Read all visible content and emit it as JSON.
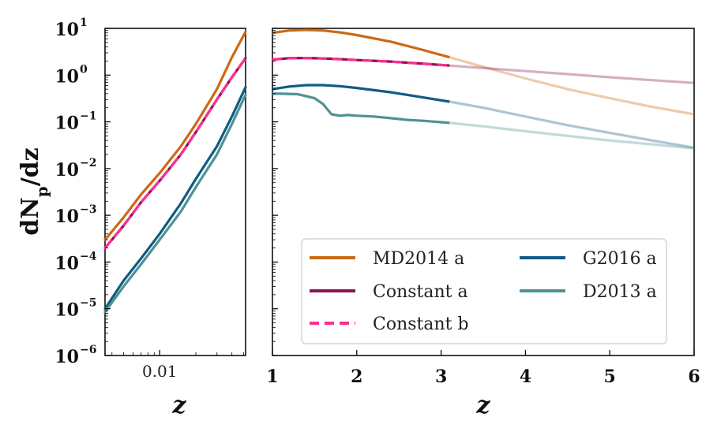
{
  "chart_data": [
    {
      "type": "line",
      "panel": "left",
      "xscale": "log",
      "yscale": "log",
      "xlim": [
        0.0035,
        0.052
      ],
      "ylim": [
        1e-06,
        10
      ],
      "xlabel": "z",
      "ylabel": "dN_p/dz",
      "ylabel_parts": {
        "main": "dN",
        "sub": "p",
        "rest": "/dz"
      },
      "x_tick_labels": [
        "0.01"
      ],
      "y_tick_labels": [
        {
          "base": "10",
          "exp": "1"
        },
        {
          "base": "10",
          "exp": "0"
        },
        {
          "base": "10",
          "exp": "−1"
        },
        {
          "base": "10",
          "exp": "−2"
        },
        {
          "base": "10",
          "exp": "−3"
        },
        {
          "base": "10",
          "exp": "−4"
        },
        {
          "base": "10",
          "exp": "−5"
        },
        {
          "base": "10",
          "exp": "−6"
        }
      ],
      "series": [
        {
          "name": "MD2014 a",
          "color": "#cc6a14",
          "style": "solid",
          "x": [
            0.0035,
            0.005,
            0.007,
            0.01,
            0.015,
            0.02,
            0.03,
            0.04,
            0.052
          ],
          "y": [
            0.0003,
            0.0009,
            0.0028,
            0.008,
            0.03,
            0.09,
            0.5,
            2.4,
            8.5
          ]
        },
        {
          "name": "Constant a",
          "color": "#8a1650",
          "style": "solid",
          "x": [
            0.0035,
            0.005,
            0.007,
            0.01,
            0.015,
            0.02,
            0.03,
            0.04,
            0.052
          ],
          "y": [
            0.0002,
            0.0006,
            0.0019,
            0.0055,
            0.02,
            0.06,
            0.3,
            0.9,
            2.3
          ]
        },
        {
          "name": "Constant b",
          "color": "#ff2d95",
          "style": "dashed",
          "x": [
            0.0035,
            0.005,
            0.007,
            0.01,
            0.015,
            0.02,
            0.03,
            0.04,
            0.052
          ],
          "y": [
            0.0002,
            0.0006,
            0.0019,
            0.0055,
            0.02,
            0.06,
            0.3,
            0.9,
            2.3
          ]
        },
        {
          "name": "G2016 a",
          "color": "#0f5c85",
          "style": "solid",
          "x": [
            0.0035,
            0.005,
            0.007,
            0.01,
            0.015,
            0.02,
            0.03,
            0.04,
            0.052
          ],
          "y": [
            1e-05,
            4e-05,
            0.00012,
            0.0004,
            0.0018,
            0.006,
            0.03,
            0.13,
            0.55
          ]
        },
        {
          "name": "D2013 a",
          "color": "#4f9294",
          "style": "solid",
          "x": [
            0.0035,
            0.005,
            0.007,
            0.01,
            0.015,
            0.02,
            0.03,
            0.04,
            0.052
          ],
          "y": [
            8.5e-06,
            3e-05,
            9e-05,
            0.0003,
            0.0012,
            0.004,
            0.02,
            0.09,
            0.38
          ]
        }
      ]
    },
    {
      "type": "line",
      "panel": "right",
      "xscale": "linear",
      "yscale": "log",
      "xlim": [
        1,
        6
      ],
      "ylim": [
        1e-06,
        10
      ],
      "xlabel": "z",
      "x_tick_labels": [
        "1",
        "2",
        "3",
        "4",
        "5",
        "6"
      ],
      "x_ticks": [
        1,
        2,
        3,
        4,
        5,
        6
      ],
      "legend": "lower right, 2 columns",
      "faded_after_x": 3.1,
      "series": [
        {
          "name": "MD2014 a",
          "color": "#cc6a14",
          "style": "solid",
          "x": [
            1,
            1.2,
            1.4,
            1.6,
            1.8,
            2.0,
            2.4,
            2.8,
            3.1,
            3.5,
            4.0,
            4.5,
            5.0,
            5.5,
            6.0
          ],
          "y": [
            8.0,
            9.0,
            9.3,
            9.0,
            8.2,
            7.2,
            5.2,
            3.4,
            2.4,
            1.5,
            0.85,
            0.5,
            0.32,
            0.21,
            0.145
          ]
        },
        {
          "name": "Constant a",
          "color": "#8a1650",
          "style": "solid",
          "x": [
            1,
            1.2,
            1.4,
            1.6,
            1.8,
            2.0,
            2.4,
            2.8,
            3.1,
            3.5,
            4.0,
            4.5,
            5.0,
            5.5,
            6.0
          ],
          "y": [
            2.15,
            2.3,
            2.32,
            2.28,
            2.2,
            2.1,
            1.95,
            1.75,
            1.6,
            1.42,
            1.22,
            1.05,
            0.9,
            0.78,
            0.68
          ]
        },
        {
          "name": "Constant b",
          "color": "#ff2d95",
          "style": "dashed",
          "x": [
            1,
            1.2,
            1.4,
            1.6,
            1.8,
            2.0,
            2.4,
            2.8,
            3.1
          ],
          "y": [
            2.15,
            2.3,
            2.32,
            2.28,
            2.2,
            2.1,
            1.95,
            1.75,
            1.6
          ]
        },
        {
          "name": "G2016 a",
          "color": "#0f5c85",
          "style": "solid",
          "x": [
            1,
            1.2,
            1.4,
            1.6,
            1.8,
            2.0,
            2.4,
            2.8,
            3.1,
            3.5,
            4.0,
            4.5,
            5.0,
            5.5,
            6.0
          ],
          "y": [
            0.5,
            0.57,
            0.61,
            0.61,
            0.58,
            0.53,
            0.43,
            0.33,
            0.27,
            0.2,
            0.13,
            0.085,
            0.058,
            0.04,
            0.028
          ]
        },
        {
          "name": "D2013 a",
          "color": "#4f9294",
          "style": "solid",
          "x": [
            1,
            1.1,
            1.3,
            1.5,
            1.6,
            1.7,
            1.8,
            1.9,
            2.0,
            2.2,
            2.4,
            2.6,
            2.8,
            3.1,
            3.5,
            4.0,
            4.5,
            5.0,
            5.5,
            6.0
          ],
          "y": [
            0.4,
            0.4,
            0.39,
            0.32,
            0.24,
            0.145,
            0.135,
            0.14,
            0.135,
            0.13,
            0.12,
            0.11,
            0.105,
            0.095,
            0.08,
            0.063,
            0.05,
            0.04,
            0.033,
            0.027
          ]
        }
      ]
    }
  ]
}
